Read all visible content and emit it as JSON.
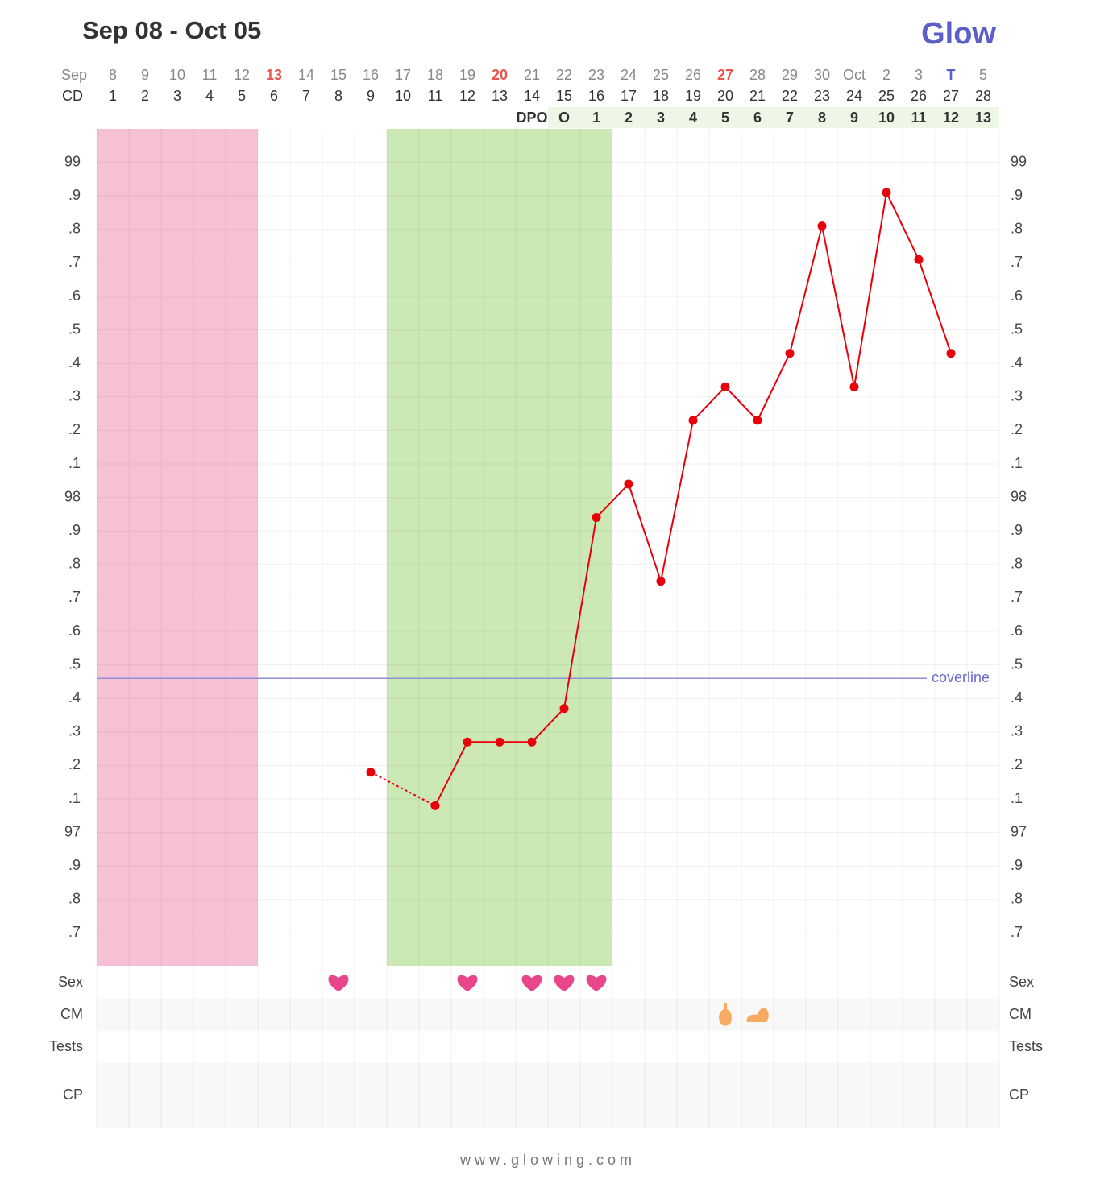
{
  "title": "Sep 08 - Oct 05",
  "logo": "Glow",
  "footer": "www.glowing.com",
  "chart_data": {
    "type": "line",
    "month_label": "Sep",
    "dates": [
      8,
      9,
      10,
      11,
      12,
      13,
      14,
      15,
      16,
      17,
      18,
      19,
      20,
      21,
      22,
      23,
      24,
      25,
      26,
      27,
      28,
      29,
      30,
      "Oct",
      2,
      3,
      "T",
      5
    ],
    "date_colors": [
      "#888",
      "#888",
      "#888",
      "#888",
      "#888",
      "#e8554a",
      "#888",
      "#888",
      "#888",
      "#888",
      "#888",
      "#888",
      "#e8554a",
      "#888",
      "#888",
      "#888",
      "#888",
      "#888",
      "#888",
      "#e8554a",
      "#888",
      "#888",
      "#888",
      "#888",
      "#888",
      "#888",
      "#5b5fc7",
      "#888"
    ],
    "cd_label": "CD",
    "cd": [
      1,
      2,
      3,
      4,
      5,
      6,
      7,
      8,
      9,
      10,
      11,
      12,
      13,
      14,
      15,
      16,
      17,
      18,
      19,
      20,
      21,
      22,
      23,
      24,
      25,
      26,
      27,
      28
    ],
    "dpo_label": "DPO",
    "dpo": [
      "O",
      1,
      2,
      3,
      4,
      5,
      6,
      7,
      8,
      9,
      10,
      11,
      12,
      13
    ],
    "period_cd": [
      1,
      5
    ],
    "period_color": "#f6c0d5",
    "fertile_cd": [
      10,
      16
    ],
    "fertile_color": "#cce8b5",
    "color": "#e8000b",
    "gap_line": "dotted",
    "values": [
      null,
      null,
      null,
      null,
      null,
      null,
      null,
      null,
      97.18,
      null,
      97.08,
      97.27,
      97.27,
      97.27,
      97.37,
      97.94,
      98.04,
      97.75,
      98.23,
      98.33,
      98.23,
      98.43,
      98.81,
      98.33,
      98.91,
      98.71,
      98.43,
      null
    ],
    "ylim": [
      96.6,
      99.1
    ],
    "yticks": [
      99,
      {
        "value": 98.9,
        "label": ".9"
      },
      {
        "value": 98.8,
        "label": ".8"
      },
      {
        "value": 98.7,
        "label": ".7"
      },
      {
        "value": 98.6,
        "label": ".6"
      },
      {
        "value": 98.5,
        "label": ".5"
      },
      {
        "value": 98.4,
        "label": ".4"
      },
      {
        "value": 98.3,
        "label": ".3"
      },
      {
        "value": 98.2,
        "label": ".2"
      },
      {
        "value": 98.1,
        "label": ".1"
      },
      98,
      {
        "value": 97.9,
        "label": ".9"
      },
      {
        "value": 97.8,
        "label": ".8"
      },
      {
        "value": 97.7,
        "label": ".7"
      },
      {
        "value": 97.6,
        "label": ".6"
      },
      {
        "value": 97.5,
        "label": ".5"
      },
      {
        "value": 97.4,
        "label": ".4"
      },
      {
        "value": 97.3,
        "label": ".3"
      },
      {
        "value": 97.2,
        "label": ".2"
      },
      {
        "value": 97.1,
        "label": ".1"
      },
      97,
      {
        "value": 96.9,
        "label": ".9"
      },
      {
        "value": 96.8,
        "label": ".8"
      },
      {
        "value": 96.7,
        "label": ".7"
      }
    ],
    "grid": true,
    "coverline": {
      "label": "coverline",
      "value": 97.46,
      "color": "#8f8fd6"
    },
    "rows": {
      "sex": {
        "label": "Sex",
        "cd": [
          8,
          12,
          14,
          15,
          16
        ]
      },
      "cm": {
        "label": "CM",
        "cd": [
          20,
          21
        ]
      },
      "tests": {
        "label": "Tests",
        "cd": []
      },
      "cp": {
        "label": "CP",
        "cd": []
      }
    }
  }
}
